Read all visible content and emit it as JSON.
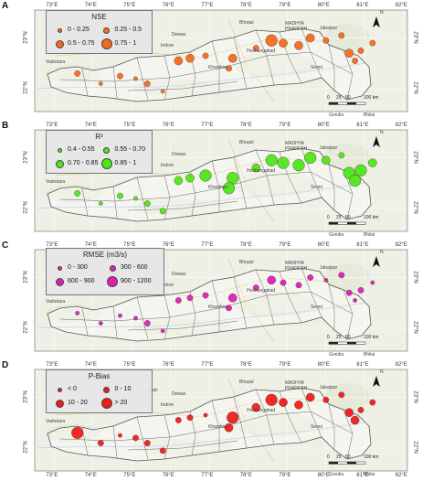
{
  "lon_ticks": [
    "73°E",
    "74°E",
    "75°E",
    "76°E",
    "77°E",
    "78°E",
    "79°E",
    "80°E",
    "81°E",
    "82°E"
  ],
  "lat_ticks": [
    "23°N",
    "22°N"
  ],
  "north_label": "N",
  "scale": {
    "ticks": [
      "0",
      "25",
      "50",
      "100 km"
    ]
  },
  "places": {
    "bhopal": "Bhopal",
    "madhya": "MADHYA",
    "pradesh": "PRADESH",
    "jabalpur": "Jabalpur",
    "dewas": "Dewas",
    "indore": "Indore",
    "vadodara": "Vadodara",
    "khandwa": "Khandwa",
    "seoni": "Seoni",
    "ujjain": "Ujjain",
    "hoshangabad": "Hoshangabad",
    "gondia": "Gondia",
    "bhilai": "Bhilai"
  },
  "colors": {
    "nse": "#f36b1d",
    "r2": "#4ee619",
    "rmse": "#dd1fb8",
    "pbias": "#ee1c1c"
  },
  "panels": [
    {
      "label": "A",
      "legend_title": "NSE",
      "color": "#f36b1d",
      "classes": [
        "0 - 0.25",
        "0.25 - 0.5",
        "0.5 - 0.75",
        "0.75 - 1"
      ]
    },
    {
      "label": "B",
      "legend_title": "R²",
      "color": "#4ee619",
      "classes": [
        "0.4 - 0.55",
        "0.55 - 0.70",
        "0.70 - 0.85",
        "0.85 - 1"
      ]
    },
    {
      "label": "C",
      "legend_title": "RMSE (m3/s)",
      "color": "#dd1fb8",
      "classes": [
        "0 - 300",
        "300 - 600",
        "600 - 900",
        "900 - 1200"
      ]
    },
    {
      "label": "D",
      "legend_title": "P-Bias",
      "color": "#ee1c1c",
      "classes": [
        "< 0",
        "0 - 10",
        "10 - 20",
        "> 20"
      ]
    }
  ],
  "stations": [
    {
      "lon": 73.6,
      "lat": 22.3,
      "nse": 1,
      "r2": 1,
      "rmse": 0,
      "pbias": 3
    },
    {
      "lon": 74.2,
      "lat": 22.1,
      "nse": 0,
      "r2": 0,
      "rmse": 0,
      "pbias": 1
    },
    {
      "lon": 74.7,
      "lat": 22.25,
      "nse": 1,
      "r2": 1,
      "rmse": 0,
      "pbias": 0
    },
    {
      "lon": 75.1,
      "lat": 22.2,
      "nse": 0,
      "r2": 0,
      "rmse": 0,
      "pbias": 1
    },
    {
      "lon": 75.4,
      "lat": 22.1,
      "nse": 1,
      "r2": 1,
      "rmse": 1,
      "pbias": 1
    },
    {
      "lon": 75.8,
      "lat": 21.95,
      "nse": 0,
      "r2": 1,
      "rmse": 0,
      "pbias": 1
    },
    {
      "lon": 76.2,
      "lat": 22.55,
      "nse": 2,
      "r2": 2,
      "rmse": 1,
      "pbias": 1
    },
    {
      "lon": 76.5,
      "lat": 22.6,
      "nse": 2,
      "r2": 2,
      "rmse": 1,
      "pbias": 1
    },
    {
      "lon": 76.9,
      "lat": 22.65,
      "nse": 1,
      "r2": 3,
      "rmse": 1,
      "pbias": 0
    },
    {
      "lon": 77.6,
      "lat": 22.6,
      "nse": 2,
      "r2": 3,
      "rmse": 2,
      "pbias": 3
    },
    {
      "lon": 77.5,
      "lat": 22.4,
      "nse": 1,
      "r2": 3,
      "rmse": 1,
      "pbias": 2
    },
    {
      "lon": 78.2,
      "lat": 22.8,
      "nse": 1,
      "r2": 2,
      "rmse": 1,
      "pbias": 2
    },
    {
      "lon": 78.6,
      "lat": 22.95,
      "nse": 3,
      "r2": 3,
      "rmse": 2,
      "pbias": 3
    },
    {
      "lon": 78.9,
      "lat": 22.9,
      "nse": 2,
      "r2": 3,
      "rmse": 1,
      "pbias": 2
    },
    {
      "lon": 79.3,
      "lat": 22.85,
      "nse": 2,
      "r2": 3,
      "rmse": 1,
      "pbias": 2
    },
    {
      "lon": 79.6,
      "lat": 23.0,
      "nse": 2,
      "r2": 3,
      "rmse": 1,
      "pbias": 2
    },
    {
      "lon": 80.0,
      "lat": 22.95,
      "nse": 1,
      "r2": 2,
      "rmse": 0,
      "pbias": 1
    },
    {
      "lon": 80.4,
      "lat": 23.05,
      "nse": 1,
      "r2": 1,
      "rmse": 1,
      "pbias": 1
    },
    {
      "lon": 80.6,
      "lat": 22.7,
      "nse": 2,
      "r2": 3,
      "rmse": 1,
      "pbias": 2
    },
    {
      "lon": 80.75,
      "lat": 22.55,
      "nse": 1,
      "r2": 3,
      "rmse": 0,
      "pbias": 2
    },
    {
      "lon": 80.9,
      "lat": 22.75,
      "nse": 1,
      "r2": 3,
      "rmse": 1,
      "pbias": 1
    },
    {
      "lon": 81.2,
      "lat": 22.9,
      "nse": 1,
      "r2": 2,
      "rmse": 0,
      "pbias": 1
    }
  ]
}
